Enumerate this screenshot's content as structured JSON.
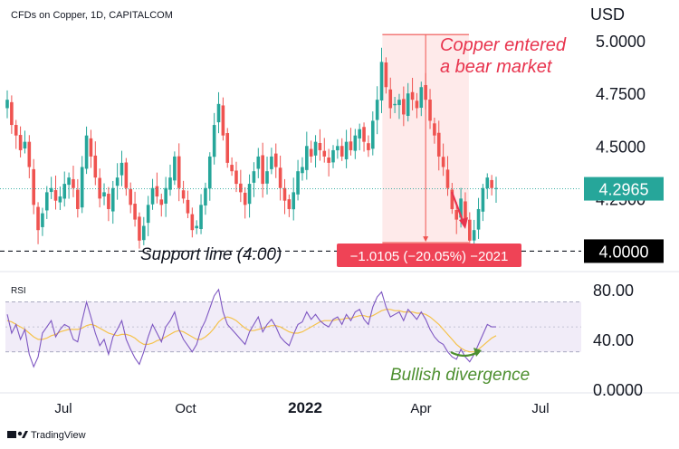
{
  "header": {
    "symbol_text": "CFDs on Copper, 1D, CAPITALCOM"
  },
  "footer": {
    "brand": "TradingView"
  },
  "colors": {
    "up": "#26a69a",
    "down": "#ef5350",
    "rsi_line": "#7e57c2",
    "rsi_ma": "#f5c24a",
    "price_badge": "#26a69a",
    "support_badge": "#000000",
    "measure_badge": "#ef4356",
    "annotation_red": "#e8344e",
    "annotation_green": "#4d8f2f",
    "rsi_band": "#ede7f6"
  },
  "chart_data": [
    {
      "type": "candlestick",
      "title": "CFDs on Copper, 1D, CAPITALCOM",
      "ylabel": "USD",
      "y_ticks": [
        "5.0000",
        "4.7500",
        "4.5000",
        "4.2500"
      ],
      "ylim": [
        3.92,
        5.16
      ],
      "x_ticks": [
        "Jul",
        "Oct",
        "2022",
        "Apr",
        "Jul"
      ],
      "current_price": "4.2965",
      "support_level_label": "4.0000",
      "support_line_text": "Support line (4.00)",
      "measure_text": "−1.0105 (−20.05%) −2021",
      "annotation": "Copper entered a bear market",
      "annotation_lines": [
        "Copper entered",
        "a bear market"
      ],
      "series": [
        {
          "values": [
            4.72,
            4.6,
            4.55,
            4.48,
            4.52,
            4.4,
            4.22,
            4.1,
            4.18,
            4.28,
            4.3,
            4.24,
            4.26,
            4.32,
            4.35,
            4.3,
            4.2,
            4.4,
            4.55,
            4.45,
            4.35,
            4.25,
            4.28,
            4.2,
            4.3,
            4.35,
            4.42,
            4.3,
            4.22,
            4.15,
            4.05,
            4.12,
            4.22,
            4.3,
            4.26,
            4.22,
            4.3,
            4.35,
            4.45,
            4.3,
            4.25,
            4.18,
            4.1,
            4.12,
            4.22,
            4.3,
            4.45,
            4.6,
            4.7,
            4.55,
            4.42,
            4.38,
            4.32,
            4.28,
            4.22,
            4.32,
            4.38,
            4.45,
            4.32,
            4.38,
            4.45,
            4.4,
            4.3,
            4.24,
            4.2,
            4.28,
            4.38,
            4.4,
            4.5,
            4.45,
            4.52,
            4.48,
            4.45,
            4.42,
            4.48,
            4.5,
            4.45,
            4.52,
            4.48,
            4.55,
            4.58,
            4.52,
            4.48,
            4.62,
            4.72,
            4.9,
            4.78,
            4.68,
            4.7,
            4.72,
            4.65,
            4.75,
            4.72,
            4.68,
            4.78,
            4.72,
            4.62,
            4.55,
            4.45,
            4.4,
            4.3,
            4.2,
            4.15,
            4.25,
            4.15,
            4.05,
            4.1,
            4.2,
            4.3,
            4.35,
            4.3,
            4.3
          ]
        }
      ]
    },
    {
      "type": "line",
      "title": "RSI",
      "y_ticks": [
        "80.00",
        "40.00",
        "0.0000"
      ],
      "ylim": [
        0,
        90
      ],
      "band": [
        30,
        70
      ],
      "midline": 50,
      "annotation": "Bullish divergence",
      "series": [
        {
          "name": "RSI",
          "values": [
            60,
            45,
            52,
            40,
            48,
            28,
            18,
            26,
            45,
            50,
            55,
            42,
            48,
            52,
            50,
            40,
            38,
            55,
            70,
            58,
            45,
            35,
            40,
            28,
            42,
            48,
            55,
            40,
            32,
            25,
            20,
            30,
            42,
            52,
            45,
            38,
            50,
            55,
            62,
            48,
            40,
            35,
            30,
            36,
            48,
            55,
            65,
            75,
            80,
            62,
            52,
            48,
            44,
            40,
            36,
            46,
            52,
            58,
            46,
            52,
            56,
            50,
            42,
            38,
            35,
            44,
            52,
            54,
            62,
            56,
            60,
            55,
            52,
            50,
            56,
            58,
            52,
            60,
            55,
            62,
            64,
            56,
            52,
            66,
            74,
            78,
            66,
            58,
            60,
            62,
            55,
            64,
            60,
            56,
            62,
            56,
            48,
            42,
            38,
            36,
            30,
            26,
            24,
            32,
            26,
            22,
            28,
            36,
            44,
            52,
            50,
            50
          ]
        },
        {
          "name": "RSI-based MA",
          "values": [
            55,
            54,
            52,
            50,
            48,
            45,
            42,
            40,
            40,
            41,
            43,
            44,
            46,
            47,
            48,
            48,
            48,
            49,
            51,
            52,
            51,
            49,
            47,
            45,
            44,
            43,
            44,
            44,
            43,
            41,
            38,
            36,
            36,
            37,
            39,
            40,
            42,
            44,
            46,
            47,
            46,
            44,
            42,
            40,
            40,
            42,
            45,
            49,
            54,
            57,
            58,
            57,
            55,
            52,
            49,
            47,
            47,
            48,
            49,
            50,
            51,
            51,
            50,
            48,
            46,
            45,
            45,
            46,
            48,
            50,
            52,
            54,
            55,
            55,
            55,
            56,
            56,
            57,
            57,
            58,
            59,
            59,
            58,
            59,
            61,
            63,
            64,
            64,
            63,
            63,
            62,
            62,
            62,
            61,
            61,
            60,
            58,
            55,
            52,
            48,
            44,
            40,
            36,
            33,
            31,
            30,
            30,
            32,
            35,
            38,
            41,
            43
          ]
        }
      ]
    }
  ]
}
